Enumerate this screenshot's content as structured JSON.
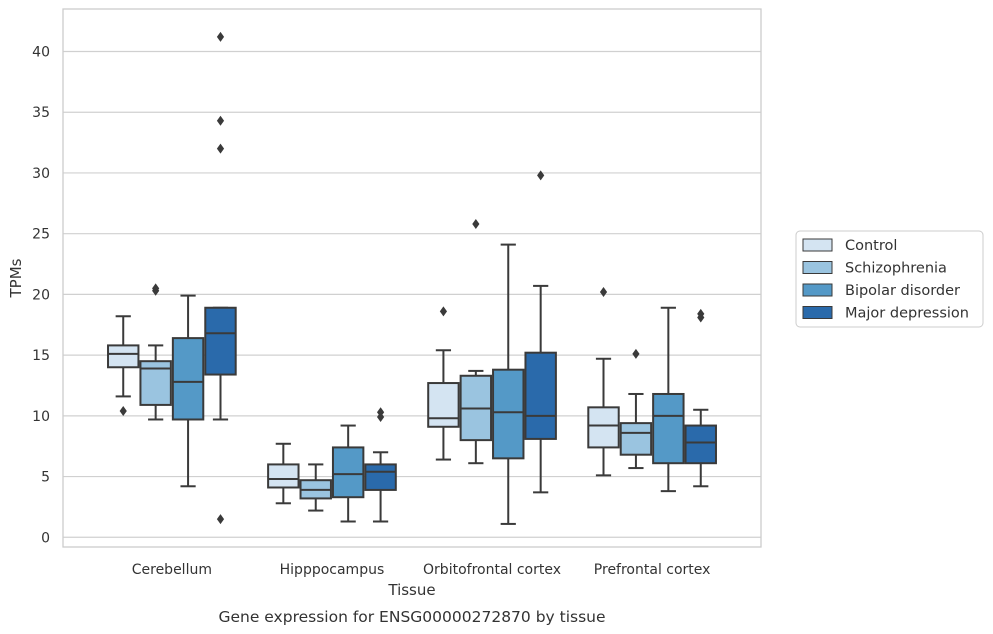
{
  "chart_data": {
    "type": "box",
    "caption": "Gene expression for ENSG00000272870 by tissue",
    "xlabel": "Tissue",
    "ylabel": "TPMs",
    "ylim": [
      -0.8,
      43.5
    ],
    "yticks": [
      0,
      5,
      10,
      15,
      20,
      25,
      30,
      35,
      40
    ],
    "grid": true,
    "legend_position": "outside-right",
    "categories": [
      "Cerebellum",
      "Hipppocampus",
      "Orbitofrontal cortex",
      "Prefrontal cortex"
    ],
    "series": [
      {
        "name": "Control",
        "color": "#d4e4f2",
        "boxes": [
          {
            "whisker_low": 11.6,
            "q1": 14.0,
            "median": 15.1,
            "q3": 15.8,
            "whisker_high": 18.2,
            "outliers": [
              10.4
            ]
          },
          {
            "whisker_low": 2.8,
            "q1": 4.1,
            "median": 4.8,
            "q3": 6.0,
            "whisker_high": 7.7,
            "outliers": []
          },
          {
            "whisker_low": 6.4,
            "q1": 9.1,
            "median": 9.8,
            "q3": 12.7,
            "whisker_high": 15.4,
            "outliers": [
              18.6
            ]
          },
          {
            "whisker_low": 5.1,
            "q1": 7.4,
            "median": 9.2,
            "q3": 10.7,
            "whisker_high": 14.7,
            "outliers": [
              20.2
            ]
          }
        ]
      },
      {
        "name": "Schizophrenia",
        "color": "#9ac4e0",
        "boxes": [
          {
            "whisker_low": 9.7,
            "q1": 10.9,
            "median": 13.9,
            "q3": 14.5,
            "whisker_high": 15.8,
            "outliers": [
              20.3,
              20.5
            ]
          },
          {
            "whisker_low": 2.2,
            "q1": 3.2,
            "median": 3.9,
            "q3": 4.7,
            "whisker_high": 6.0,
            "outliers": []
          },
          {
            "whisker_low": 6.1,
            "q1": 8.0,
            "median": 10.6,
            "q3": 13.3,
            "whisker_high": 13.7,
            "outliers": [
              25.8
            ]
          },
          {
            "whisker_low": 5.7,
            "q1": 6.8,
            "median": 8.6,
            "q3": 9.4,
            "whisker_high": 11.8,
            "outliers": [
              15.1
            ]
          }
        ]
      },
      {
        "name": "Bipolar disorder",
        "color": "#5499c7",
        "boxes": [
          {
            "whisker_low": 4.2,
            "q1": 9.7,
            "median": 12.8,
            "q3": 16.4,
            "whisker_high": 19.9,
            "outliers": []
          },
          {
            "whisker_low": 1.3,
            "q1": 3.3,
            "median": 5.2,
            "q3": 7.4,
            "whisker_high": 9.2,
            "outliers": []
          },
          {
            "whisker_low": 1.1,
            "q1": 6.5,
            "median": 10.3,
            "q3": 13.8,
            "whisker_high": 24.1,
            "outliers": []
          },
          {
            "whisker_low": 3.8,
            "q1": 6.1,
            "median": 10.0,
            "q3": 11.8,
            "whisker_high": 18.9,
            "outliers": []
          }
        ]
      },
      {
        "name": "Major depression",
        "color": "#2a6aab",
        "boxes": [
          {
            "whisker_low": 9.7,
            "q1": 13.4,
            "median": 16.8,
            "q3": 18.9,
            "whisker_high": 18.9,
            "outliers": [
              1.5,
              32.0,
              34.3,
              41.2
            ]
          },
          {
            "whisker_low": 1.3,
            "q1": 3.9,
            "median": 5.4,
            "q3": 6.0,
            "whisker_high": 7.0,
            "outliers": [
              9.9,
              10.3
            ]
          },
          {
            "whisker_low": 3.7,
            "q1": 8.1,
            "median": 10.0,
            "q3": 15.2,
            "whisker_high": 20.7,
            "outliers": [
              29.8
            ]
          },
          {
            "whisker_low": 4.2,
            "q1": 6.1,
            "median": 7.8,
            "q3": 9.2,
            "whisker_high": 10.5,
            "outliers": [
              18.1,
              18.4
            ]
          }
        ]
      }
    ]
  }
}
